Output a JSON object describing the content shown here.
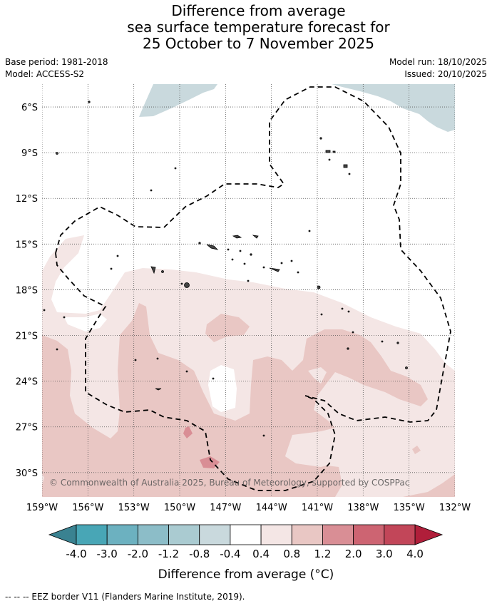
{
  "header": {
    "title_lines": [
      "Difference from average",
      "sea surface temperature forecast for",
      "25 October to 7 November 2025"
    ],
    "base_period": "Base period: 1981-2018",
    "model": "Model: ACCESS-S2",
    "model_run": "Model run: 18/10/2025",
    "issued": "Issued: 20/10/2025"
  },
  "chart_data": {
    "type": "heatmap",
    "title": "Difference from average sea surface temperature forecast for 25 October to 7 November 2025",
    "xlabel": "",
    "ylabel": "",
    "x_ticks": [
      "159°W",
      "156°W",
      "153°W",
      "150°W",
      "147°W",
      "144°W",
      "141°W",
      "138°W",
      "135°W",
      "132°W"
    ],
    "x_values": [
      -159,
      -156,
      -153,
      -150,
      -147,
      -144,
      -141,
      -138,
      -135,
      -132
    ],
    "y_ticks": [
      "6°S",
      "9°S",
      "12°S",
      "15°S",
      "18°S",
      "21°S",
      "24°S",
      "27°S",
      "30°S"
    ],
    "y_values": [
      -6,
      -9,
      -12,
      -15,
      -18,
      -21,
      -24,
      -27,
      -30
    ],
    "xlim": [
      -159,
      -132
    ],
    "ylim": [
      -31.6,
      -4.5
    ],
    "grid": true,
    "colorbar": {
      "label": "Difference from average (°C)",
      "tick_labels": [
        "-4.0",
        "-3.0",
        "-2.0",
        "-1.2",
        "-0.8",
        "-0.4",
        "0.4",
        "0.8",
        "1.2",
        "2.0",
        "3.0",
        "4.0"
      ],
      "under_color": "#3a8291",
      "over_color": "#b01e3a",
      "colors": [
        "#48a6b6",
        "#6cb1c0",
        "#8cbdc8",
        "#aacbd1",
        "#c9d9dd",
        "#ffffff",
        "#f4e6e5",
        "#e9c7c4",
        "#d98e95",
        "#cd6472",
        "#c24659"
      ]
    },
    "anomaly_regions": [
      {
        "category": "-0.8 to -0.4",
        "description": "north-west corner near 5-6°S, 148-144°W",
        "color": "#c9d9dd"
      },
      {
        "category": "-0.8 to -0.4",
        "description": "north-east corner near 5-8°S, 137-133°W",
        "color": "#c9d9dd"
      },
      {
        "category": "0.4 to 0.8",
        "description": "broad band from 17°S southward across the domain",
        "color": "#f4e6e5"
      },
      {
        "category": "0.8 to 1.2",
        "description": "west 21-31°S and south-east 21-31°S",
        "color": "#e9c7c4"
      },
      {
        "category": "1.2 to 2.0",
        "description": "small patches near 28°S 150°W and 29.5°S 148°W",
        "color": "#d98e95"
      }
    ],
    "boundary_legend": "-- -- -- EEZ border V11 (Flanders Marine Institute, 2019).",
    "copyright": "© Commonwealth of Australia 2025, Bureau of Meteorology, supported by COSPPac"
  }
}
